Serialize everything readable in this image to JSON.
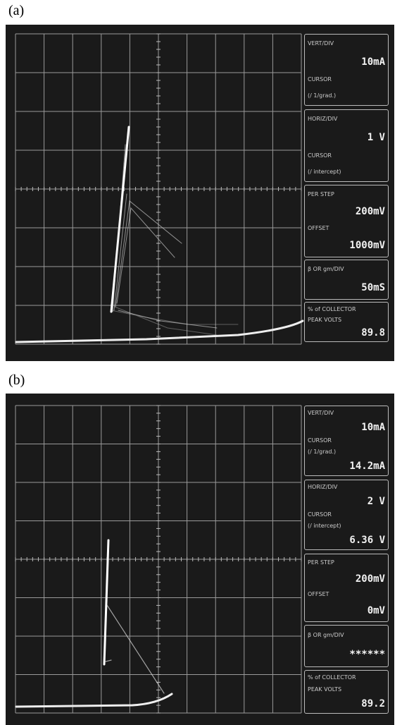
{
  "panels": [
    {
      "label": "(a)",
      "boxes": [
        {
          "lines": [
            {
              "label": "VERT/DIV"
            },
            {
              "value": "10mA"
            },
            {
              "label": "CURSOR"
            },
            {
              "label": "(/ 1/grad.)"
            }
          ]
        },
        {
          "lines": [
            {
              "label": "HORIZ/DIV"
            },
            {
              "value": "1 V"
            },
            {
              "label": "CURSOR"
            },
            {
              "label": "(/ intercept)"
            }
          ]
        },
        {
          "lines": [
            {
              "label": "PER STEP"
            },
            {
              "value": "200mV"
            },
            {
              "label": "OFFSET"
            },
            {
              "value": "1000mV"
            }
          ]
        },
        {
          "lines": [
            {
              "label": "β OR gm/DIV"
            },
            {
              "value": "50mS"
            }
          ]
        },
        {
          "lines": [
            {
              "label": "% of COLLECTOR"
            },
            {
              "label": "PEAK VOLTS"
            },
            {
              "value": "89.8"
            }
          ]
        }
      ]
    },
    {
      "label": "(b)",
      "boxes": [
        {
          "lines": [
            {
              "label": "VERT/DIV"
            },
            {
              "value": "10mA"
            },
            {
              "label": "CURSOR"
            },
            {
              "label": "(/ 1/grad.)"
            },
            {
              "value": "14.2mA"
            }
          ]
        },
        {
          "lines": [
            {
              "label": "HORIZ/DIV"
            },
            {
              "value": "2 V"
            },
            {
              "label": "CURSOR"
            },
            {
              "label": "(/ intercept)"
            },
            {
              "value": "6.36 V"
            }
          ]
        },
        {
          "lines": [
            {
              "label": "PER STEP"
            },
            {
              "value": "200mV"
            },
            {
              "label": "OFFSET"
            },
            {
              "value": "0mV"
            }
          ]
        },
        {
          "lines": [
            {
              "label": "β OR gm/DIV"
            },
            {
              "value": "******"
            }
          ]
        },
        {
          "lines": [
            {
              "label": "% of COLLECTOR"
            },
            {
              "label": "PEAK VOLTS"
            },
            {
              "value": "89.2"
            }
          ]
        }
      ]
    }
  ]
}
